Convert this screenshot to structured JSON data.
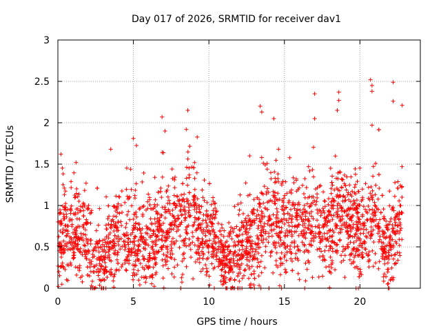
{
  "chart_data": {
    "type": "scatter",
    "title": "Day 017 of 2026, SRMTID for receiver dav1",
    "xlabel": "GPS time / hours",
    "ylabel": "SRMTID / TECUs",
    "xlim": [
      0,
      24
    ],
    "ylim": [
      0,
      3
    ],
    "xticks": [
      0,
      5,
      10,
      15,
      20
    ],
    "xtick_labels": [
      "0",
      "5",
      "10",
      "15",
      "20"
    ],
    "yticks": [
      0,
      0.5,
      1,
      1.5,
      2,
      2.5,
      3
    ],
    "ytick_labels": [
      "0",
      "0.5",
      "1",
      "1.5",
      "2",
      "2.5",
      "3"
    ],
    "grid": true,
    "marker": "+",
    "color": "#ff0000",
    "trend": {
      "x": [
        0.0,
        0.5,
        1.0,
        1.5,
        2.0,
        2.5,
        3.0,
        3.5,
        4.0,
        4.5,
        5.0,
        5.5,
        6.0,
        6.5,
        7.0,
        7.5,
        8.0,
        8.5,
        9.0,
        9.5,
        10.0,
        10.5,
        11.0,
        11.5,
        12.0,
        12.5,
        13.0,
        13.5,
        14.0,
        14.5,
        15.0,
        15.5,
        16.0,
        16.5,
        17.0,
        17.5,
        18.0,
        18.5,
        19.0,
        19.5,
        20.0,
        20.5,
        21.0,
        21.5,
        22.0,
        22.5,
        22.8
      ],
      "y": [
        0.55,
        0.72,
        0.65,
        0.7,
        0.55,
        0.32,
        0.3,
        0.6,
        0.7,
        0.65,
        0.62,
        0.58,
        0.55,
        0.6,
        0.72,
        0.68,
        0.75,
        0.9,
        0.8,
        0.72,
        0.62,
        0.58,
        0.3,
        0.3,
        0.45,
        0.55,
        0.58,
        0.8,
        0.9,
        0.85,
        0.78,
        0.72,
        0.75,
        0.7,
        0.8,
        0.72,
        0.78,
        0.88,
        0.8,
        0.75,
        0.65,
        0.78,
        0.95,
        0.55,
        0.45,
        0.75,
        0.95
      ]
    },
    "spread": 0.28,
    "point_count": 2600,
    "highlight_points": [
      {
        "x": 0.2,
        "y": 1.62
      },
      {
        "x": 1.2,
        "y": 1.52
      },
      {
        "x": 3.5,
        "y": 1.68
      },
      {
        "x": 5.0,
        "y": 1.81
      },
      {
        "x": 6.9,
        "y": 2.07
      },
      {
        "x": 7.1,
        "y": 1.9
      },
      {
        "x": 8.6,
        "y": 2.15
      },
      {
        "x": 8.5,
        "y": 1.92
      },
      {
        "x": 12.7,
        "y": 1.6
      },
      {
        "x": 13.4,
        "y": 2.2
      },
      {
        "x": 13.5,
        "y": 2.13
      },
      {
        "x": 14.3,
        "y": 2.05
      },
      {
        "x": 16.6,
        "y": 1.47
      },
      {
        "x": 17.0,
        "y": 2.35
      },
      {
        "x": 17.0,
        "y": 2.05
      },
      {
        "x": 18.6,
        "y": 2.37
      },
      {
        "x": 18.6,
        "y": 2.27
      },
      {
        "x": 18.5,
        "y": 2.15
      },
      {
        "x": 20.7,
        "y": 2.52
      },
      {
        "x": 20.8,
        "y": 2.45
      },
      {
        "x": 20.8,
        "y": 2.38
      },
      {
        "x": 20.8,
        "y": 1.97
      },
      {
        "x": 22.2,
        "y": 2.49
      },
      {
        "x": 22.2,
        "y": 2.26
      },
      {
        "x": 22.8,
        "y": 2.21
      },
      {
        "x": 2.3,
        "y": 0.0
      },
      {
        "x": 14.8,
        "y": 0.0
      },
      {
        "x": 19.9,
        "y": 0.0
      }
    ]
  }
}
